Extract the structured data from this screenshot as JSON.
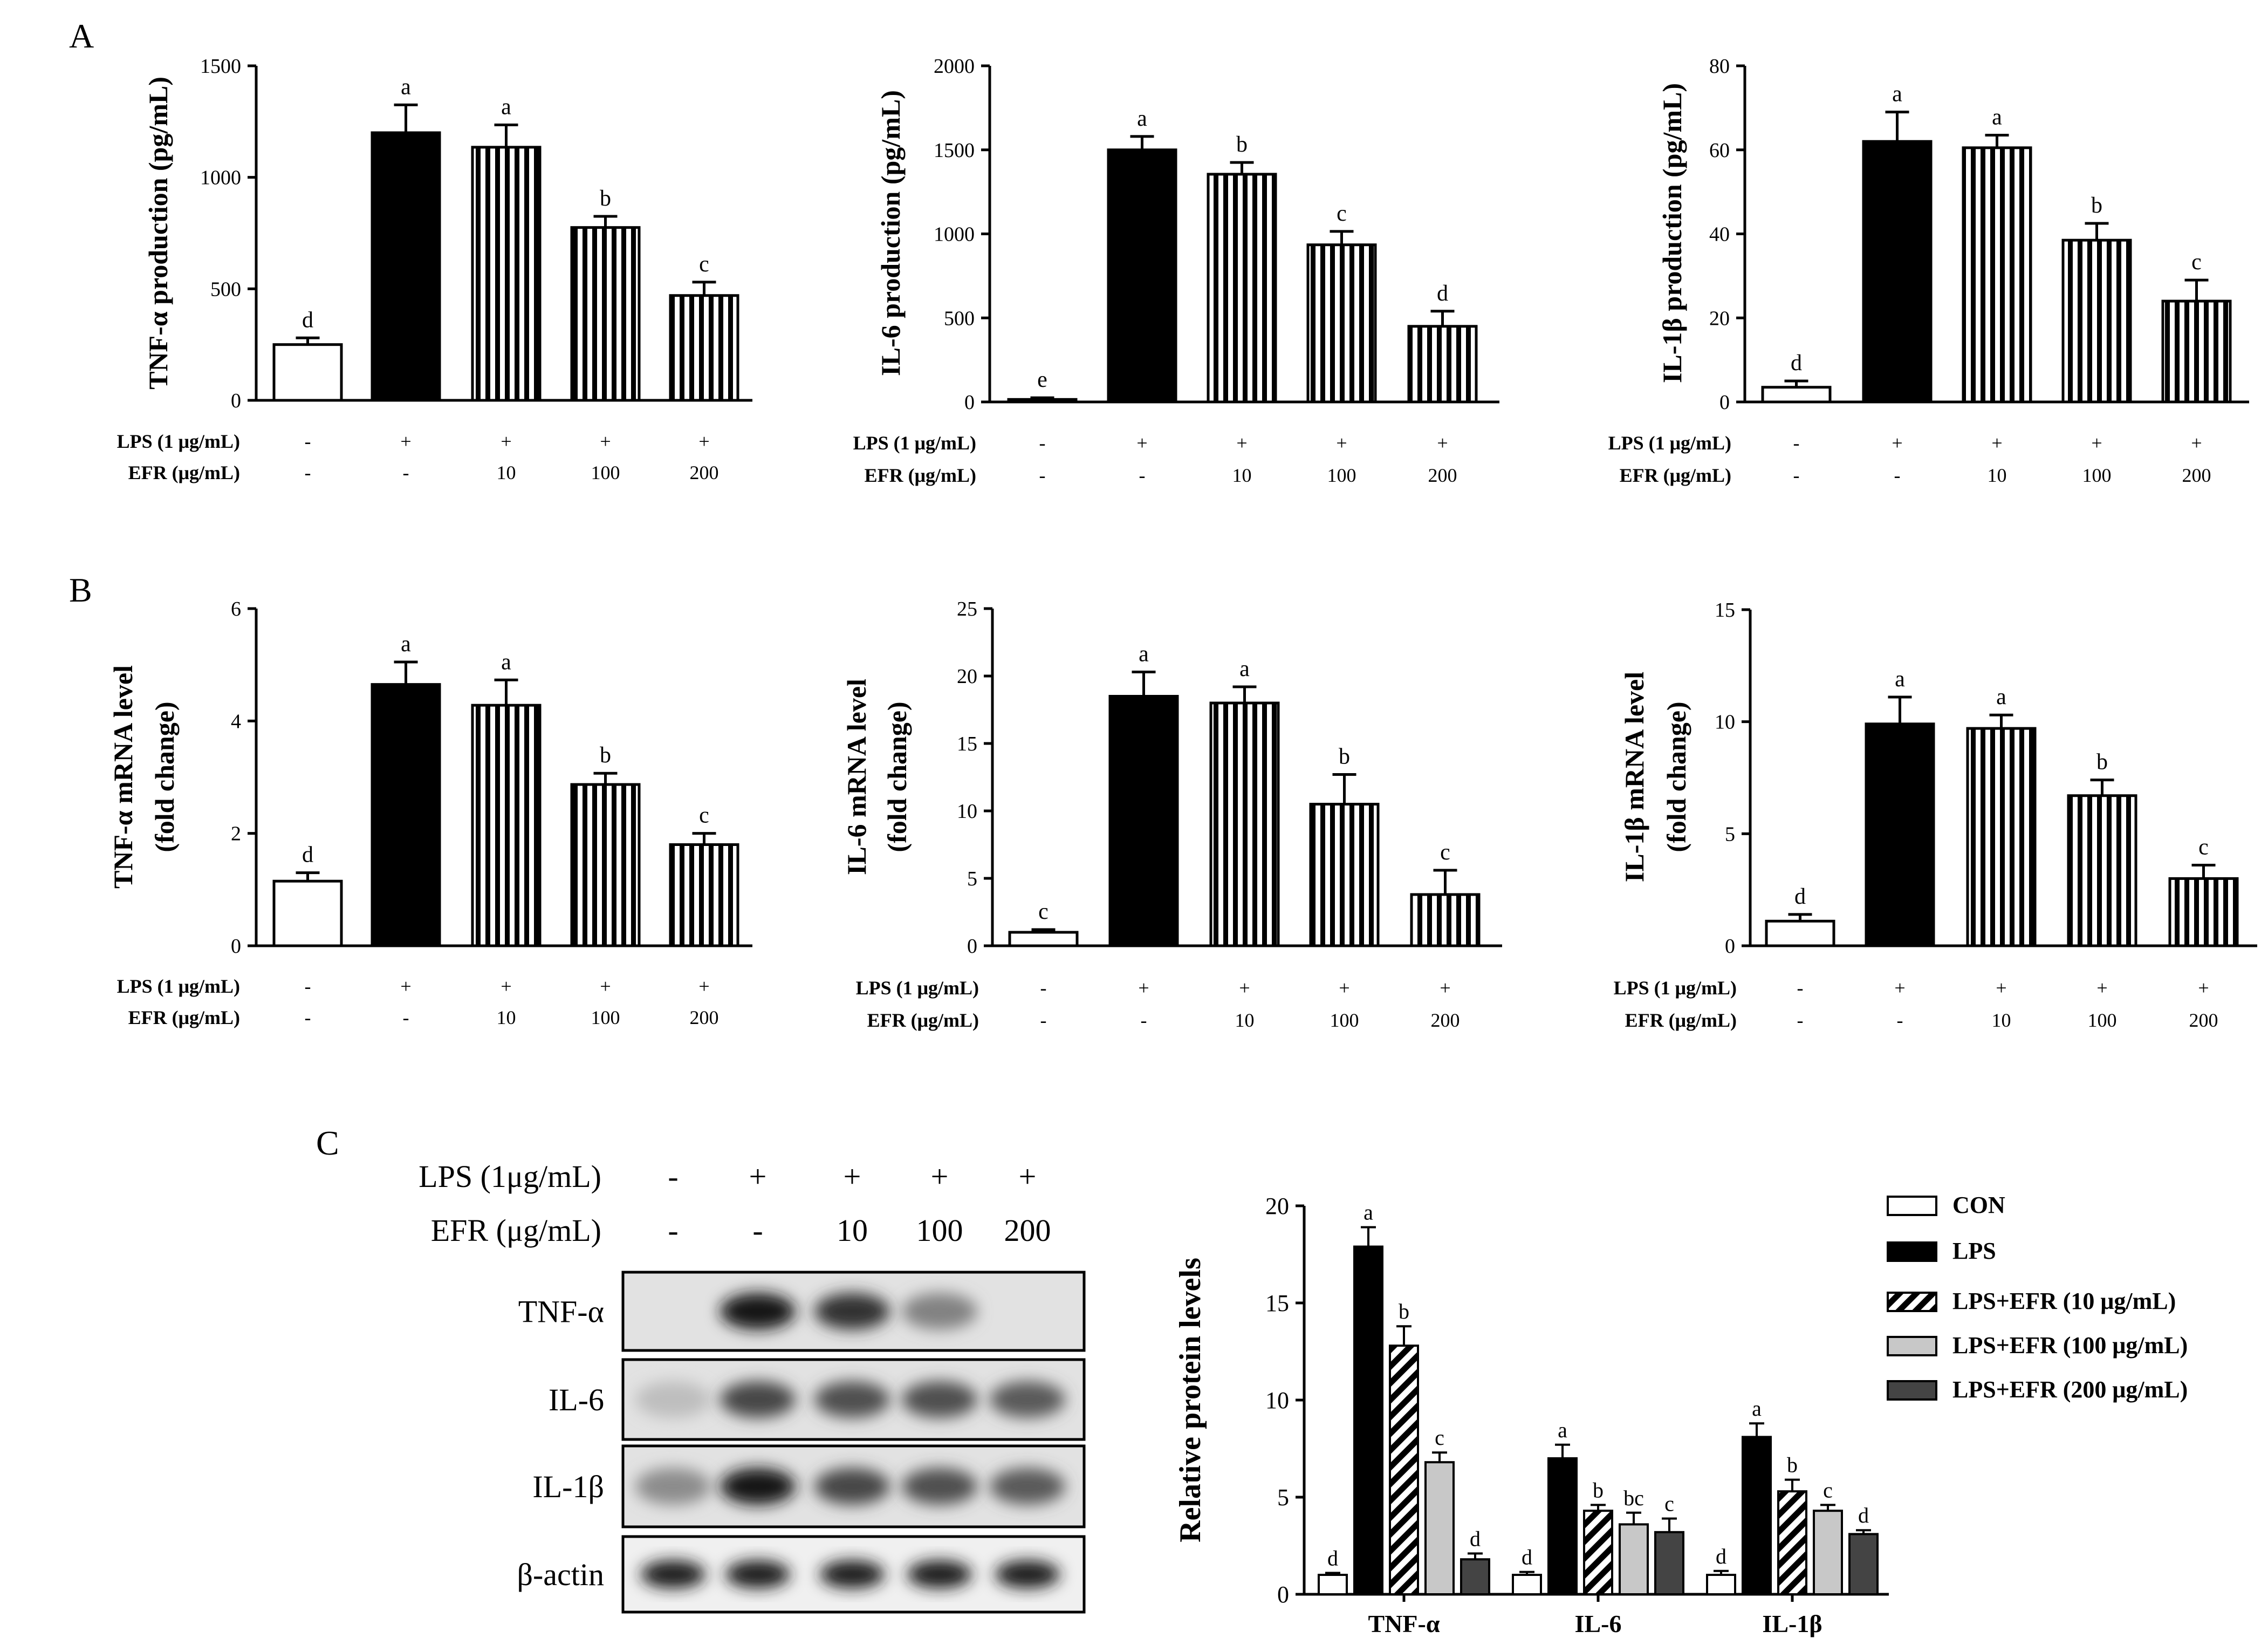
{
  "panel_labels": {
    "a": "A",
    "b": "B",
    "c": "C"
  },
  "chart_data": [
    {
      "id": "a1",
      "type": "bar",
      "ylabel": "TNF-α production (pg/mL)",
      "ylim": [
        0,
        1500
      ],
      "yticks": [
        "0",
        "500",
        "1000",
        "1500"
      ],
      "values": [
        250,
        1200,
        1135,
        775,
        470
      ],
      "errors": [
        30,
        125,
        100,
        50,
        60
      ],
      "letters": [
        "d",
        "a",
        "a",
        "b",
        "c"
      ],
      "row1_label": "LPS (1 μg/mL)",
      "row1": [
        "-",
        "+",
        "+",
        "+",
        "+"
      ],
      "row2_label": "EFR (μg/mL)",
      "row2": [
        "-",
        "-",
        "10",
        "100",
        "200"
      ]
    },
    {
      "id": "a2",
      "type": "bar",
      "ylabel": "IL-6 production (pg/mL)",
      "ylim": [
        0,
        2000
      ],
      "yticks": [
        "0",
        "500",
        "1000",
        "1500",
        "2000"
      ],
      "values": [
        15,
        1500,
        1355,
        935,
        450
      ],
      "errors": [
        10,
        80,
        70,
        80,
        90
      ],
      "letters": [
        "e",
        "a",
        "b",
        "c",
        "d"
      ],
      "row1_label": "LPS (1 μg/mL)",
      "row1": [
        "-",
        "+",
        "+",
        "+",
        "+"
      ],
      "row2_label": "EFR (μg/mL)",
      "row2": [
        "-",
        "-",
        "10",
        "100",
        "200"
      ]
    },
    {
      "id": "a3",
      "type": "bar",
      "ylabel": "IL-1β production (pg/mL)",
      "ylim": [
        0,
        80
      ],
      "yticks": [
        "0",
        "20",
        "40",
        "60",
        "80"
      ],
      "values": [
        3.5,
        62,
        60.5,
        38.5,
        24
      ],
      "errors": [
        1.5,
        7,
        3,
        4,
        5
      ],
      "letters": [
        "d",
        "a",
        "a",
        "b",
        "c"
      ],
      "row1_label": "LPS (1 μg/mL)",
      "row1": [
        "-",
        "+",
        "+",
        "+",
        "+"
      ],
      "row2_label": "EFR (μg/mL)",
      "row2": [
        "-",
        "-",
        "10",
        "100",
        "200"
      ]
    },
    {
      "id": "b1",
      "type": "bar",
      "ylabel": "TNF-α mRNA level",
      "ylabel2": "(fold change)",
      "ylim": [
        0,
        6
      ],
      "yticks": [
        "0",
        "2",
        "4",
        "6"
      ],
      "values": [
        1.15,
        4.65,
        4.28,
        2.87,
        1.8
      ],
      "errors": [
        0.15,
        0.4,
        0.45,
        0.2,
        0.2
      ],
      "letters": [
        "d",
        "a",
        "a",
        "b",
        "c"
      ],
      "row1_label": "LPS (1 μg/mL)",
      "row1": [
        "-",
        "+",
        "+",
        "+",
        "+"
      ],
      "row2_label": "EFR (μg/mL)",
      "row2": [
        "-",
        "-",
        "10",
        "100",
        "200"
      ]
    },
    {
      "id": "b2",
      "type": "bar",
      "ylabel": "IL-6 mRNA level",
      "ylabel2": "(fold change)",
      "ylim": [
        0,
        25
      ],
      "yticks": [
        "0",
        "5",
        "10",
        "15",
        "20",
        "25"
      ],
      "values": [
        1,
        18.5,
        18,
        10.5,
        3.8
      ],
      "errors": [
        0.2,
        1.8,
        1.2,
        2.2,
        1.8
      ],
      "letters": [
        "c",
        "a",
        "a",
        "b",
        "c"
      ],
      "row1_label": "LPS (1 μg/mL)",
      "row1": [
        "-",
        "+",
        "+",
        "+",
        "+"
      ],
      "row2_label": "EFR (μg/mL)",
      "row2": [
        "-",
        "-",
        "10",
        "100",
        "200"
      ]
    },
    {
      "id": "b3",
      "type": "bar",
      "ylabel": "IL-1β mRNA level",
      "ylabel2": "(fold change)",
      "ylim": [
        0,
        15
      ],
      "yticks": [
        "0",
        "5",
        "10",
        "15"
      ],
      "values": [
        1.1,
        9.9,
        9.7,
        6.7,
        3
      ],
      "errors": [
        0.3,
        1.2,
        0.6,
        0.7,
        0.6
      ],
      "letters": [
        "d",
        "a",
        "a",
        "b",
        "c"
      ],
      "row1_label": "LPS (1 μg/mL)",
      "row1": [
        "-",
        "+",
        "+",
        "+",
        "+"
      ],
      "row2_label": "EFR (μg/mL)",
      "row2": [
        "-",
        "-",
        "10",
        "100",
        "200"
      ]
    },
    {
      "id": "c2",
      "type": "bar",
      "grouped": true,
      "ylabel": "Relative protein levels",
      "ylim": [
        0,
        20
      ],
      "yticks": [
        "0",
        "5",
        "10",
        "15",
        "20"
      ],
      "categories": [
        "TNF-α",
        "IL-6",
        "IL-1β"
      ],
      "series": [
        {
          "name": "CON",
          "values": [
            1,
            1,
            1
          ],
          "errors": [
            0.1,
            0.15,
            0.2
          ],
          "letters": [
            "d",
            "d",
            "d"
          ]
        },
        {
          "name": "LPS",
          "values": [
            17.9,
            7,
            8.1
          ],
          "errors": [
            1,
            0.7,
            0.7
          ],
          "letters": [
            "a",
            "a",
            "a"
          ]
        },
        {
          "name": "LPS+EFR (10 μg/mL)",
          "values": [
            12.8,
            4.3,
            5.3
          ],
          "errors": [
            1,
            0.3,
            0.6
          ],
          "letters": [
            "b",
            "b",
            "b"
          ]
        },
        {
          "name": "LPS+EFR (100 μg/mL)",
          "values": [
            6.8,
            3.6,
            4.3
          ],
          "errors": [
            0.5,
            0.6,
            0.3
          ],
          "letters": [
            "c",
            "bc",
            "c"
          ]
        },
        {
          "name": "LPS+EFR (200 μg/mL)",
          "values": [
            1.8,
            3.2,
            3.1
          ],
          "errors": [
            0.3,
            0.7,
            0.2
          ],
          "letters": [
            "d",
            "c",
            "d"
          ]
        }
      ]
    }
  ],
  "blot": {
    "row1_label": "LPS (1μg/mL)",
    "row1": [
      "-",
      "+",
      "+",
      "+",
      "+"
    ],
    "row2_label": "EFR (μg/mL)",
    "row2": [
      "-",
      "-",
      "10",
      "100",
      "200"
    ],
    "bands": [
      {
        "label": "TNF-α",
        "intensity": [
          0,
          0.95,
          0.8,
          0.4,
          0
        ]
      },
      {
        "label": "IL-6",
        "intensity": [
          0.1,
          0.7,
          0.65,
          0.65,
          0.6
        ]
      },
      {
        "label": "IL-1β",
        "intensity": [
          0.35,
          0.95,
          0.7,
          0.65,
          0.6
        ]
      },
      {
        "label": "β-actin",
        "intensity": [
          0.9,
          0.9,
          0.9,
          0.9,
          0.9
        ]
      }
    ]
  },
  "colors": {
    "black": "#000000",
    "white": "#ffffff",
    "light_gray": "#c8c8c8",
    "dark_gray": "#444444"
  }
}
